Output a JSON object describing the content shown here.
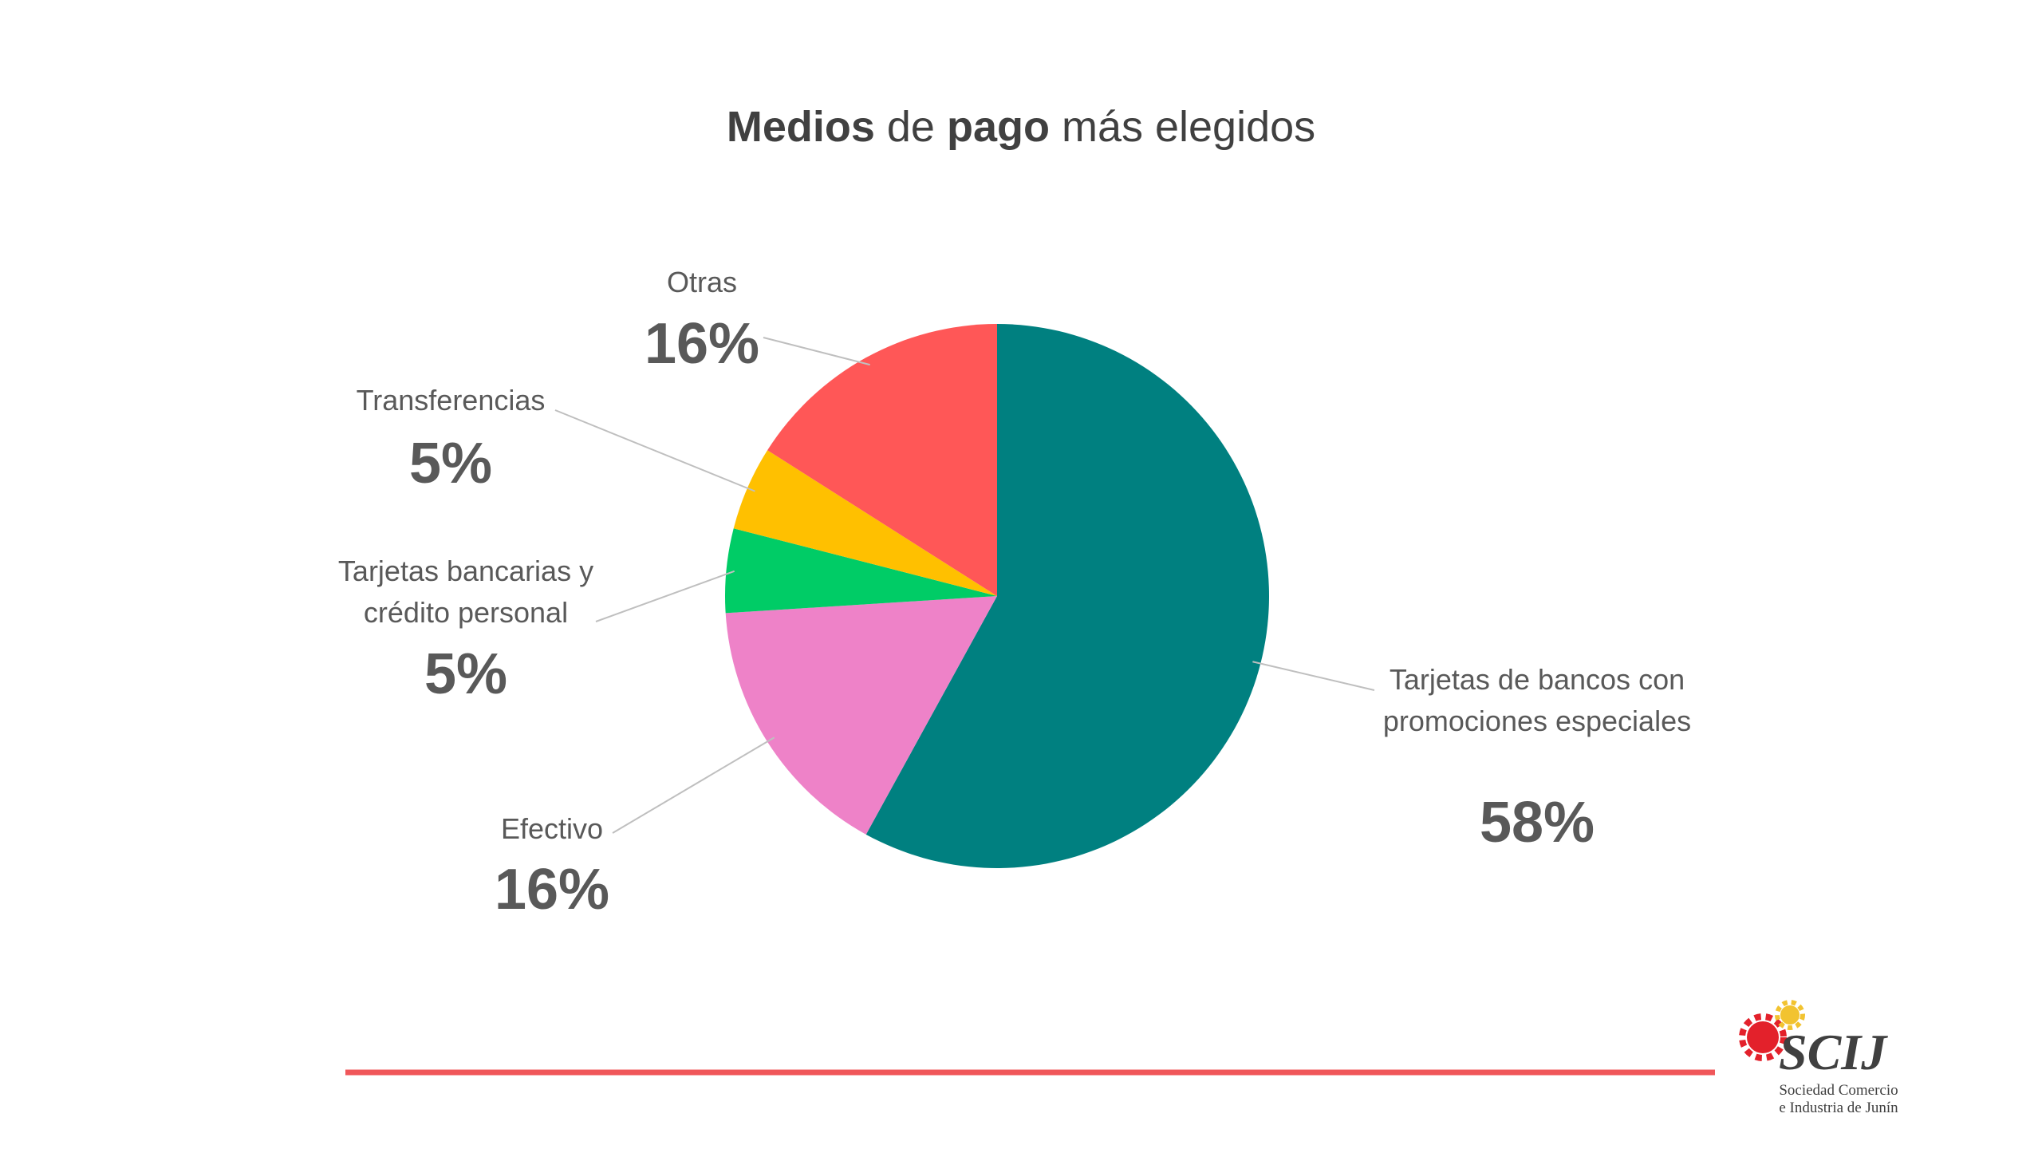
{
  "chart_data": {
    "type": "pie",
    "title_runs": [
      {
        "text": "Medios",
        "bold": true
      },
      {
        "text": " de ",
        "bold": false
      },
      {
        "text": "pago",
        "bold": true
      },
      {
        "text": " más elegidos",
        "bold": false
      }
    ],
    "categories": [
      "Tarjetas de bancos con promociones especiales",
      "Efectivo",
      "Tarjetas bancarias y crédito personal",
      "Transferencias",
      "Otras"
    ],
    "values": [
      58,
      16,
      5,
      5,
      16
    ],
    "value_labels": [
      "58%",
      "16%",
      "5%",
      "5%",
      "16%"
    ],
    "colors": [
      "#008080",
      "#ee82c8",
      "#00cc66",
      "#ffc000",
      "#ff5757"
    ]
  },
  "logo": {
    "name": "SCIJ",
    "lines": [
      "Sociedad Comercio",
      "e Industria de Junín"
    ]
  }
}
